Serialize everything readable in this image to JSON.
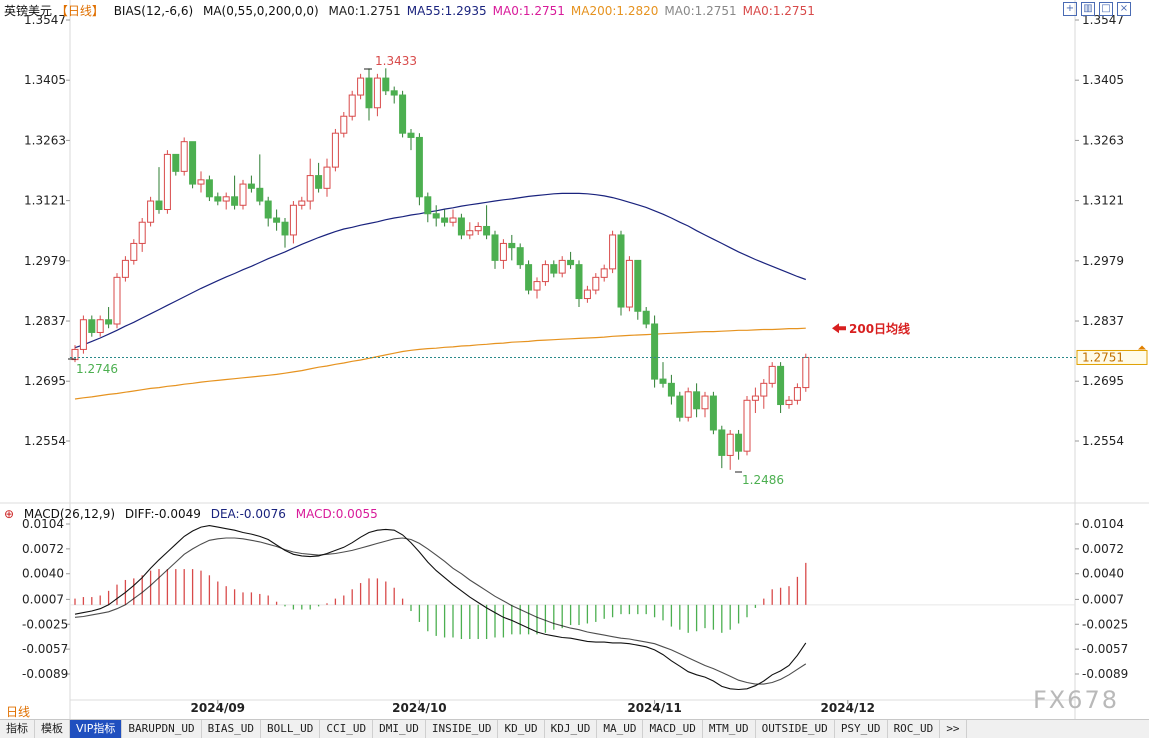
{
  "header": {
    "symbol": "英镑美元",
    "period_tag": "【日线】",
    "bias_label": "BIAS(12,-6,6)",
    "ma_params": "MA(0,55,0,200,0,0)",
    "ma_values": [
      {
        "text": "MA0:1.2751",
        "color": "#222222"
      },
      {
        "text": "MA55:1.2935",
        "color": "#1a237e"
      },
      {
        "text": "MA0:1.2751",
        "color": "#d81b9a"
      },
      {
        "text": "MA200:1.2820",
        "color": "#e69320"
      },
      {
        "text": "MA0:1.2751",
        "color": "#888888"
      },
      {
        "text": "MA0:1.2751",
        "color": "#d84a4a"
      }
    ]
  },
  "macd_header": {
    "label": "MACD(26,12,9)",
    "diff": "DIFF:-0.0049",
    "dea": "DEA:-0.0076",
    "macd": "MACD:0.0055"
  },
  "annotations": {
    "high_label": "1.3433",
    "low_label": "1.2486",
    "start_label": "1.2746",
    "ma200_label": "200日均线",
    "current_price": "1.2751"
  },
  "period_label": "日线",
  "watermark": "FX678",
  "toolbar": [
    "指标",
    "模板",
    "VIP指标",
    "BARUPDN_UD",
    "BIAS_UD",
    "BOLL_UD",
    "CCI_UD",
    "DMI_UD",
    "INSIDE_UD",
    "KD_UD",
    "KDJ_UD",
    "MA_UD",
    "MACD_UD",
    "MTM_UD",
    "OUTSIDE_UD",
    "PSY_UD",
    "ROC_UD",
    ">>"
  ],
  "colors": {
    "up": "#d84a4a",
    "down": "#4caf50",
    "ma55": "#1a237e",
    "ma200": "#e69320"
  },
  "chart_data": [
    {
      "type": "candlestick",
      "x_ticks": [
        "2024/09",
        "2024/10",
        "2024/11",
        "2024/12"
      ],
      "x_tick_index": [
        17,
        41,
        69,
        92
      ],
      "y_ticks": [
        1.3547,
        1.3405,
        1.3263,
        1.3121,
        1.2979,
        1.2837,
        1.2695,
        1.2554
      ],
      "ylim": [
        1.245,
        1.3547
      ],
      "ohlc": [
        [
          1.2746,
          1.278,
          1.274,
          1.277
        ],
        [
          1.277,
          1.285,
          1.276,
          1.284
        ],
        [
          1.284,
          1.285,
          1.28,
          1.281
        ],
        [
          1.281,
          1.285,
          1.28,
          1.284
        ],
        [
          1.284,
          1.287,
          1.282,
          1.283
        ],
        [
          1.283,
          1.295,
          1.282,
          1.294
        ],
        [
          1.294,
          1.299,
          1.293,
          1.298
        ],
        [
          1.298,
          1.303,
          1.297,
          1.302
        ],
        [
          1.302,
          1.308,
          1.3,
          1.307
        ],
        [
          1.307,
          1.313,
          1.306,
          1.312
        ],
        [
          1.312,
          1.32,
          1.309,
          1.31
        ],
        [
          1.31,
          1.324,
          1.309,
          1.323
        ],
        [
          1.323,
          1.323,
          1.318,
          1.319
        ],
        [
          1.319,
          1.327,
          1.318,
          1.326
        ],
        [
          1.326,
          1.326,
          1.315,
          1.316
        ],
        [
          1.316,
          1.319,
          1.314,
          1.317
        ],
        [
          1.317,
          1.318,
          1.312,
          1.313
        ],
        [
          1.313,
          1.314,
          1.311,
          1.312
        ],
        [
          1.312,
          1.314,
          1.31,
          1.313
        ],
        [
          1.313,
          1.318,
          1.31,
          1.311
        ],
        [
          1.311,
          1.317,
          1.31,
          1.316
        ],
        [
          1.316,
          1.318,
          1.314,
          1.315
        ],
        [
          1.315,
          1.323,
          1.311,
          1.312
        ],
        [
          1.312,
          1.313,
          1.306,
          1.308
        ],
        [
          1.308,
          1.31,
          1.305,
          1.307
        ],
        [
          1.307,
          1.308,
          1.301,
          1.304
        ],
        [
          1.304,
          1.312,
          1.302,
          1.311
        ],
        [
          1.311,
          1.313,
          1.31,
          1.312
        ],
        [
          1.312,
          1.322,
          1.31,
          1.318
        ],
        [
          1.318,
          1.321,
          1.314,
          1.315
        ],
        [
          1.315,
          1.322,
          1.313,
          1.32
        ],
        [
          1.32,
          1.329,
          1.319,
          1.328
        ],
        [
          1.328,
          1.333,
          1.327,
          1.332
        ],
        [
          1.332,
          1.338,
          1.331,
          1.337
        ],
        [
          1.337,
          1.342,
          1.336,
          1.341
        ],
        [
          1.341,
          1.3433,
          1.331,
          1.334
        ],
        [
          1.334,
          1.342,
          1.332,
          1.341
        ],
        [
          1.341,
          1.3433,
          1.337,
          1.338
        ],
        [
          1.338,
          1.339,
          1.335,
          1.337
        ],
        [
          1.337,
          1.338,
          1.327,
          1.328
        ],
        [
          1.328,
          1.329,
          1.324,
          1.327
        ],
        [
          1.327,
          1.328,
          1.311,
          1.313
        ],
        [
          1.313,
          1.314,
          1.307,
          1.309
        ],
        [
          1.309,
          1.311,
          1.306,
          1.308
        ],
        [
          1.308,
          1.31,
          1.306,
          1.307
        ],
        [
          1.307,
          1.31,
          1.306,
          1.308
        ],
        [
          1.308,
          1.309,
          1.303,
          1.304
        ],
        [
          1.304,
          1.307,
          1.303,
          1.305
        ],
        [
          1.305,
          1.307,
          1.304,
          1.306
        ],
        [
          1.306,
          1.311,
          1.303,
          1.304
        ],
        [
          1.304,
          1.305,
          1.296,
          1.298
        ],
        [
          1.298,
          1.303,
          1.296,
          1.302
        ],
        [
          1.302,
          1.304,
          1.298,
          1.301
        ],
        [
          1.301,
          1.302,
          1.296,
          1.297
        ],
        [
          1.297,
          1.298,
          1.29,
          1.291
        ],
        [
          1.291,
          1.294,
          1.289,
          1.293
        ],
        [
          1.293,
          1.298,
          1.292,
          1.297
        ],
        [
          1.297,
          1.298,
          1.294,
          1.295
        ],
        [
          1.295,
          1.299,
          1.294,
          1.298
        ],
        [
          1.298,
          1.3,
          1.296,
          1.297
        ],
        [
          1.297,
          1.298,
          1.287,
          1.289
        ],
        [
          1.289,
          1.292,
          1.288,
          1.291
        ],
        [
          1.291,
          1.295,
          1.29,
          1.294
        ],
        [
          1.294,
          1.297,
          1.293,
          1.296
        ],
        [
          1.296,
          1.305,
          1.295,
          1.304
        ],
        [
          1.304,
          1.305,
          1.285,
          1.287
        ],
        [
          1.287,
          1.299,
          1.286,
          1.298
        ],
        [
          1.298,
          1.298,
          1.284,
          1.286
        ],
        [
          1.286,
          1.287,
          1.282,
          1.283
        ],
        [
          1.283,
          1.285,
          1.268,
          1.27
        ],
        [
          1.27,
          1.274,
          1.268,
          1.269
        ],
        [
          1.269,
          1.271,
          1.264,
          1.266
        ],
        [
          1.266,
          1.267,
          1.26,
          1.261
        ],
        [
          1.261,
          1.268,
          1.26,
          1.267
        ],
        [
          1.267,
          1.269,
          1.261,
          1.263
        ],
        [
          1.263,
          1.267,
          1.261,
          1.266
        ],
        [
          1.266,
          1.267,
          1.257,
          1.258
        ],
        [
          1.258,
          1.259,
          1.249,
          1.252
        ],
        [
          1.252,
          1.258,
          1.2486,
          1.257
        ],
        [
          1.257,
          1.258,
          1.251,
          1.253
        ],
        [
          1.253,
          1.266,
          1.252,
          1.265
        ],
        [
          1.265,
          1.268,
          1.262,
          1.266
        ],
        [
          1.266,
          1.27,
          1.263,
          1.269
        ],
        [
          1.269,
          1.274,
          1.268,
          1.273
        ],
        [
          1.273,
          1.274,
          1.262,
          1.264
        ],
        [
          1.264,
          1.266,
          1.263,
          1.265
        ],
        [
          1.265,
          1.269,
          1.264,
          1.268
        ],
        [
          1.268,
          1.276,
          1.267,
          1.2751
        ]
      ],
      "ma55": [
        1.2774,
        1.2781,
        1.2789,
        1.2797,
        1.2806,
        1.2815,
        1.2825,
        1.2834,
        1.2844,
        1.2854,
        1.2864,
        1.2874,
        1.2884,
        1.2894,
        1.2904,
        1.2914,
        1.2923,
        1.2932,
        1.2941,
        1.2949,
        1.2958,
        1.2966,
        1.2975,
        1.2984,
        1.2992,
        1.3,
        1.3009,
        1.3018,
        1.3026,
        1.3034,
        1.3041,
        1.3048,
        1.3054,
        1.3058,
        1.3063,
        1.3067,
        1.3071,
        1.3076,
        1.308,
        1.3083,
        1.3087,
        1.309,
        1.3094,
        1.3097,
        1.3101,
        1.3104,
        1.3108,
        1.3111,
        1.3114,
        1.3117,
        1.312,
        1.3123,
        1.3125,
        1.3128,
        1.3131,
        1.3133,
        1.3135,
        1.3137,
        1.3138,
        1.3138,
        1.3138,
        1.3137,
        1.3135,
        1.3132,
        1.3128,
        1.3123,
        1.3117,
        1.3111,
        1.3105,
        1.3097,
        1.3089,
        1.308,
        1.307,
        1.3061,
        1.305,
        1.304,
        1.303,
        1.302,
        1.301,
        1.3,
        1.2991,
        1.2982,
        1.2974,
        1.2966,
        1.2958,
        1.295,
        1.2942,
        1.2935
      ],
      "ma200": [
        1.2653,
        1.2656,
        1.2658,
        1.2661,
        1.2664,
        1.2666,
        1.2669,
        1.2672,
        1.2675,
        1.2678,
        1.268,
        1.2683,
        1.2685,
        1.2688,
        1.269,
        1.2693,
        1.2695,
        1.2697,
        1.2699,
        1.2701,
        1.2703,
        1.2705,
        1.2707,
        1.2709,
        1.2711,
        1.2714,
        1.2717,
        1.272,
        1.2724,
        1.2728,
        1.2731,
        1.2735,
        1.2738,
        1.2742,
        1.2745,
        1.2749,
        1.2753,
        1.2757,
        1.2761,
        1.2765,
        1.2768,
        1.277,
        1.2772,
        1.2773,
        1.2775,
        1.2776,
        1.2778,
        1.2779,
        1.2781,
        1.2782,
        1.2784,
        1.2785,
        1.2787,
        1.2788,
        1.2789,
        1.2791,
        1.2792,
        1.2793,
        1.2794,
        1.2795,
        1.2796,
        1.2797,
        1.2798,
        1.2799,
        1.2801,
        1.2802,
        1.2803,
        1.2804,
        1.2805,
        1.2806,
        1.2807,
        1.2808,
        1.2809,
        1.281,
        1.2811,
        1.2812,
        1.2812,
        1.2813,
        1.2814,
        1.2815,
        1.2815,
        1.2816,
        1.2817,
        1.2817,
        1.2818,
        1.2819,
        1.2819,
        1.282
      ]
    },
    {
      "type": "macd",
      "y_ticks": [
        0.0104,
        0.0072,
        0.004,
        0.0007,
        -0.0025,
        -0.0057,
        -0.0089
      ],
      "ylim": [
        -0.0118,
        0.0112
      ],
      "diff": [
        -0.0012,
        -0.001,
        -0.0008,
        -0.0005,
        0.0,
        0.0008,
        0.0016,
        0.0025,
        0.0035,
        0.0047,
        0.0058,
        0.0068,
        0.0078,
        0.0088,
        0.0095,
        0.01,
        0.0102,
        0.01,
        0.0098,
        0.0096,
        0.0093,
        0.0091,
        0.0088,
        0.0084,
        0.0077,
        0.007,
        0.0065,
        0.0063,
        0.0062,
        0.0063,
        0.0066,
        0.007,
        0.0074,
        0.008,
        0.0087,
        0.0093,
        0.0096,
        0.0097,
        0.0096,
        0.009,
        0.008,
        0.0068,
        0.0055,
        0.0044,
        0.0035,
        0.0026,
        0.0018,
        0.001,
        0.0003,
        -0.0004,
        -0.001,
        -0.0016,
        -0.002,
        -0.0025,
        -0.003,
        -0.0035,
        -0.0038,
        -0.004,
        -0.0042,
        -0.0043,
        -0.0045,
        -0.0047,
        -0.0048,
        -0.0048,
        -0.0049,
        -0.0049,
        -0.005,
        -0.0052,
        -0.0054,
        -0.0058,
        -0.0064,
        -0.0072,
        -0.0079,
        -0.0086,
        -0.009,
        -0.0093,
        -0.0098,
        -0.0105,
        -0.0108,
        -0.0109,
        -0.0108,
        -0.0104,
        -0.0098,
        -0.009,
        -0.0085,
        -0.0078,
        -0.0065,
        -0.0049
      ],
      "dea": [
        -0.0016,
        -0.0015,
        -0.0013,
        -0.0011,
        -0.0009,
        -0.0005,
        0.0,
        0.0008,
        0.0016,
        0.0025,
        0.0035,
        0.0045,
        0.0055,
        0.0065,
        0.0072,
        0.0078,
        0.0083,
        0.0085,
        0.0086,
        0.0086,
        0.0085,
        0.0083,
        0.0081,
        0.0078,
        0.0075,
        0.0071,
        0.0068,
        0.0066,
        0.0065,
        0.0064,
        0.0065,
        0.0066,
        0.0068,
        0.007,
        0.0073,
        0.0076,
        0.0079,
        0.0082,
        0.0085,
        0.0086,
        0.0084,
        0.0079,
        0.0072,
        0.0064,
        0.0056,
        0.0047,
        0.004,
        0.0032,
        0.0025,
        0.0018,
        0.0011,
        0.0005,
        -0.0001,
        -0.0006,
        -0.0011,
        -0.0016,
        -0.002,
        -0.0024,
        -0.0027,
        -0.003,
        -0.0032,
        -0.0035,
        -0.0037,
        -0.0039,
        -0.0041,
        -0.0043,
        -0.0044,
        -0.0046,
        -0.0048,
        -0.005,
        -0.0054,
        -0.0058,
        -0.0063,
        -0.0068,
        -0.0073,
        -0.0078,
        -0.0082,
        -0.0087,
        -0.0092,
        -0.0097,
        -0.01,
        -0.0102,
        -0.0102,
        -0.01,
        -0.0096,
        -0.009,
        -0.0083,
        -0.0076
      ]
    }
  ]
}
